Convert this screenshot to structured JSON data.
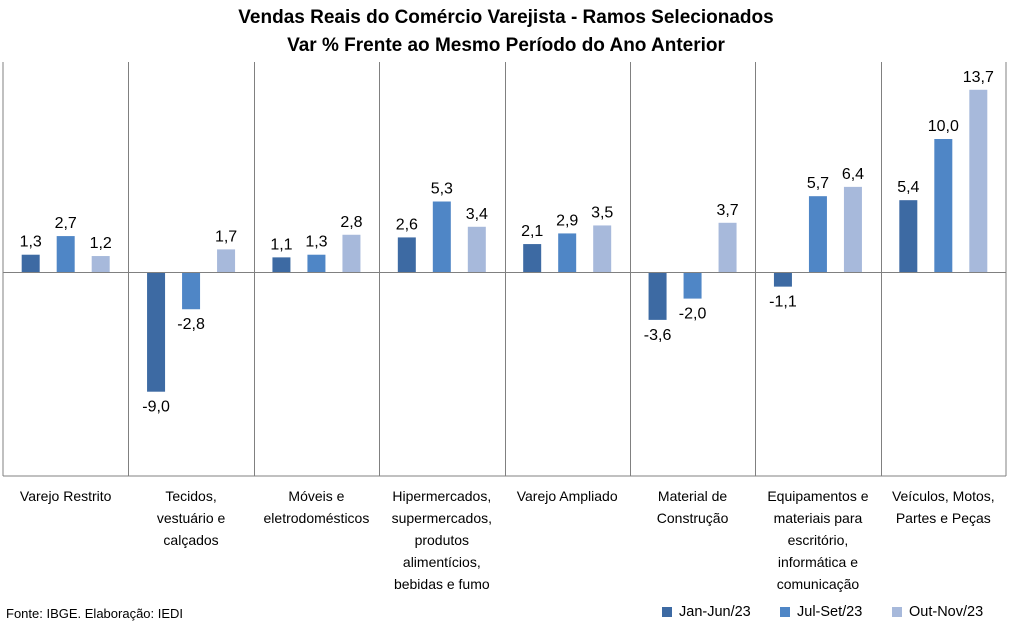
{
  "title": "Vendas Reais do Comércio Varejista - Ramos Selecionados",
  "subtitle": "Var % Frente ao Mesmo Período do Ano Anterior",
  "source": "Fonte: IBGE. Elaboração: IEDI",
  "chart_data": {
    "type": "bar",
    "title": "Vendas Reais do Comércio Varejista - Ramos Selecionados",
    "subtitle": "Var % Frente ao Mesmo Período do Ano Anterior",
    "xlabel": "",
    "ylabel": "",
    "ylim": [
      -10,
      15
    ],
    "grid": false,
    "legend": "bottom-right",
    "categories": [
      [
        "Varejo Restrito"
      ],
      [
        "Tecidos,",
        "vestuário e",
        "calçados"
      ],
      [
        "Móveis e",
        "eletrodomésticos"
      ],
      [
        "Hipermercados,",
        "supermercados,",
        "produtos",
        "alimentícios,",
        "bebidas e fumo"
      ],
      [
        "Varejo Ampliado"
      ],
      [
        "Material de",
        "Construção"
      ],
      [
        "Equipamentos e",
        "materiais para",
        "escritório,",
        "informática e",
        "comunicação"
      ],
      [
        "Veículos, Motos,",
        "Partes e Peças"
      ]
    ],
    "series": [
      {
        "name": "Jan-Jun/23",
        "color": "#3d6aa3",
        "values": [
          1.3,
          -9.0,
          1.1,
          2.6,
          2.1,
          -3.6,
          -1.1,
          5.4
        ],
        "labels": [
          "1,3",
          "-9,0",
          "1,1",
          "2,6",
          "2,1",
          "-3,6",
          "-1,1",
          "5,4"
        ]
      },
      {
        "name": "Jul-Set/23",
        "color": "#4f86c6",
        "values": [
          2.7,
          -2.8,
          1.3,
          5.3,
          2.9,
          -2.0,
          5.7,
          10.0
        ],
        "labels": [
          "2,7",
          "-2,8",
          "1,3",
          "5,3",
          "2,9",
          "-2,0",
          "5,7",
          "10,0"
        ]
      },
      {
        "name": "Out-Nov/23",
        "color": "#a7b9db",
        "values": [
          1.2,
          1.7,
          2.8,
          3.4,
          3.5,
          3.7,
          6.4,
          13.7
        ],
        "labels": [
          "1,2",
          "1,7",
          "2,8",
          "3,4",
          "3,5",
          "3,7",
          "6,4",
          "13,7"
        ]
      }
    ]
  }
}
